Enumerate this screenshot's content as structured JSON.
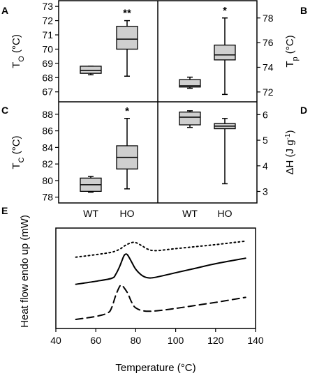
{
  "chart_data": [
    {
      "panel": "A",
      "type": "box",
      "ylabel_main": "T",
      "ylabel_sub": "O",
      "ylabel_unit": " (°C)",
      "ylim": [
        66.3,
        73.4
      ],
      "yticks": [
        67,
        68,
        69,
        70,
        71,
        72,
        73
      ],
      "categories": [
        "WT",
        "HO"
      ],
      "boxes": [
        {
          "category": "WT",
          "min": 68.2,
          "q1": 68.3,
          "median": 68.5,
          "q3": 68.8,
          "max": 68.8,
          "annotation": ""
        },
        {
          "category": "HO",
          "min": 68.1,
          "q1": 70.0,
          "median": 70.7,
          "q3": 71.6,
          "max": 72.0,
          "annotation": "**"
        }
      ]
    },
    {
      "panel": "B",
      "type": "box",
      "ylabel_main": "T",
      "ylabel_sub": "p",
      "ylabel_unit": " (°C)",
      "ylim": [
        71.2,
        79.4
      ],
      "yticks": [
        72,
        74,
        76,
        78
      ],
      "categories": [
        "WT",
        "HO"
      ],
      "boxes": [
        {
          "category": "WT",
          "min": 72.3,
          "q1": 72.4,
          "median": 72.5,
          "q3": 73.0,
          "max": 73.2,
          "annotation": ""
        },
        {
          "category": "HO",
          "min": 71.8,
          "q1": 74.6,
          "median": 75.0,
          "q3": 75.8,
          "max": 78.0,
          "annotation": "*"
        }
      ]
    },
    {
      "panel": "C",
      "type": "box",
      "ylabel_main": "T",
      "ylabel_sub": "C",
      "ylabel_unit": " (°C)",
      "ylim": [
        77.3,
        89.5
      ],
      "yticks": [
        78,
        80,
        82,
        84,
        86,
        88
      ],
      "categories": [
        "WT",
        "HO"
      ],
      "boxes": [
        {
          "category": "WT",
          "min": 78.6,
          "q1": 78.7,
          "median": 79.5,
          "q3": 80.3,
          "max": 80.5,
          "annotation": ""
        },
        {
          "category": "HO",
          "min": 79.0,
          "q1": 81.4,
          "median": 82.8,
          "q3": 84.2,
          "max": 87.5,
          "annotation": "*"
        }
      ]
    },
    {
      "panel": "D",
      "type": "box",
      "ylabel_main": "ΔH (J g",
      "ylabel_sup": "-1",
      "ylabel_end": ")",
      "ylim": [
        2.55,
        6.5
      ],
      "yticks": [
        3,
        4,
        5,
        6
      ],
      "categories": [
        "WT",
        "HO"
      ],
      "boxes": [
        {
          "category": "WT",
          "min": 5.5,
          "q1": 5.6,
          "median": 5.9,
          "q3": 6.1,
          "max": 6.15,
          "annotation": ""
        },
        {
          "category": "HO",
          "min": 3.3,
          "q1": 5.45,
          "median": 5.55,
          "q3": 5.65,
          "max": 5.85,
          "annotation": ""
        }
      ]
    },
    {
      "panel": "E",
      "type": "line",
      "xlabel": "Temperature (°C)",
      "ylabel": "Heat flow endo up (mW)",
      "xlim": [
        40,
        140
      ],
      "xticks": [
        40,
        60,
        80,
        100,
        120,
        140
      ],
      "ylim": [
        0,
        10
      ],
      "yticks_shown": false,
      "series": [
        {
          "style": "dotted",
          "x": [
            50,
            60,
            68,
            72,
            75,
            78,
            80,
            83,
            86,
            90,
            100,
            110,
            120,
            135
          ],
          "y": [
            7.1,
            7.35,
            7.6,
            7.9,
            8.3,
            8.55,
            8.55,
            8.25,
            7.9,
            7.75,
            7.95,
            8.15,
            8.35,
            8.7
          ]
        },
        {
          "style": "solid",
          "x": [
            50,
            60,
            68,
            70,
            72,
            74,
            75,
            76,
            78,
            80,
            83,
            86,
            90,
            100,
            110,
            120,
            135
          ],
          "y": [
            4.4,
            4.7,
            5.0,
            5.4,
            6.2,
            7.2,
            7.4,
            7.3,
            6.6,
            5.9,
            5.3,
            5.05,
            5.1,
            5.55,
            6.0,
            6.45,
            7.0
          ]
        },
        {
          "style": "dashed",
          "x": [
            50,
            60,
            66,
            68,
            70,
            72,
            73,
            74,
            76,
            78,
            80,
            84,
            90,
            100,
            110,
            120,
            135
          ],
          "y": [
            0.9,
            1.2,
            1.55,
            2.1,
            3.3,
            4.2,
            4.3,
            4.1,
            3.5,
            2.6,
            2.05,
            1.75,
            1.75,
            2.0,
            2.3,
            2.6,
            3.1
          ]
        }
      ]
    }
  ]
}
